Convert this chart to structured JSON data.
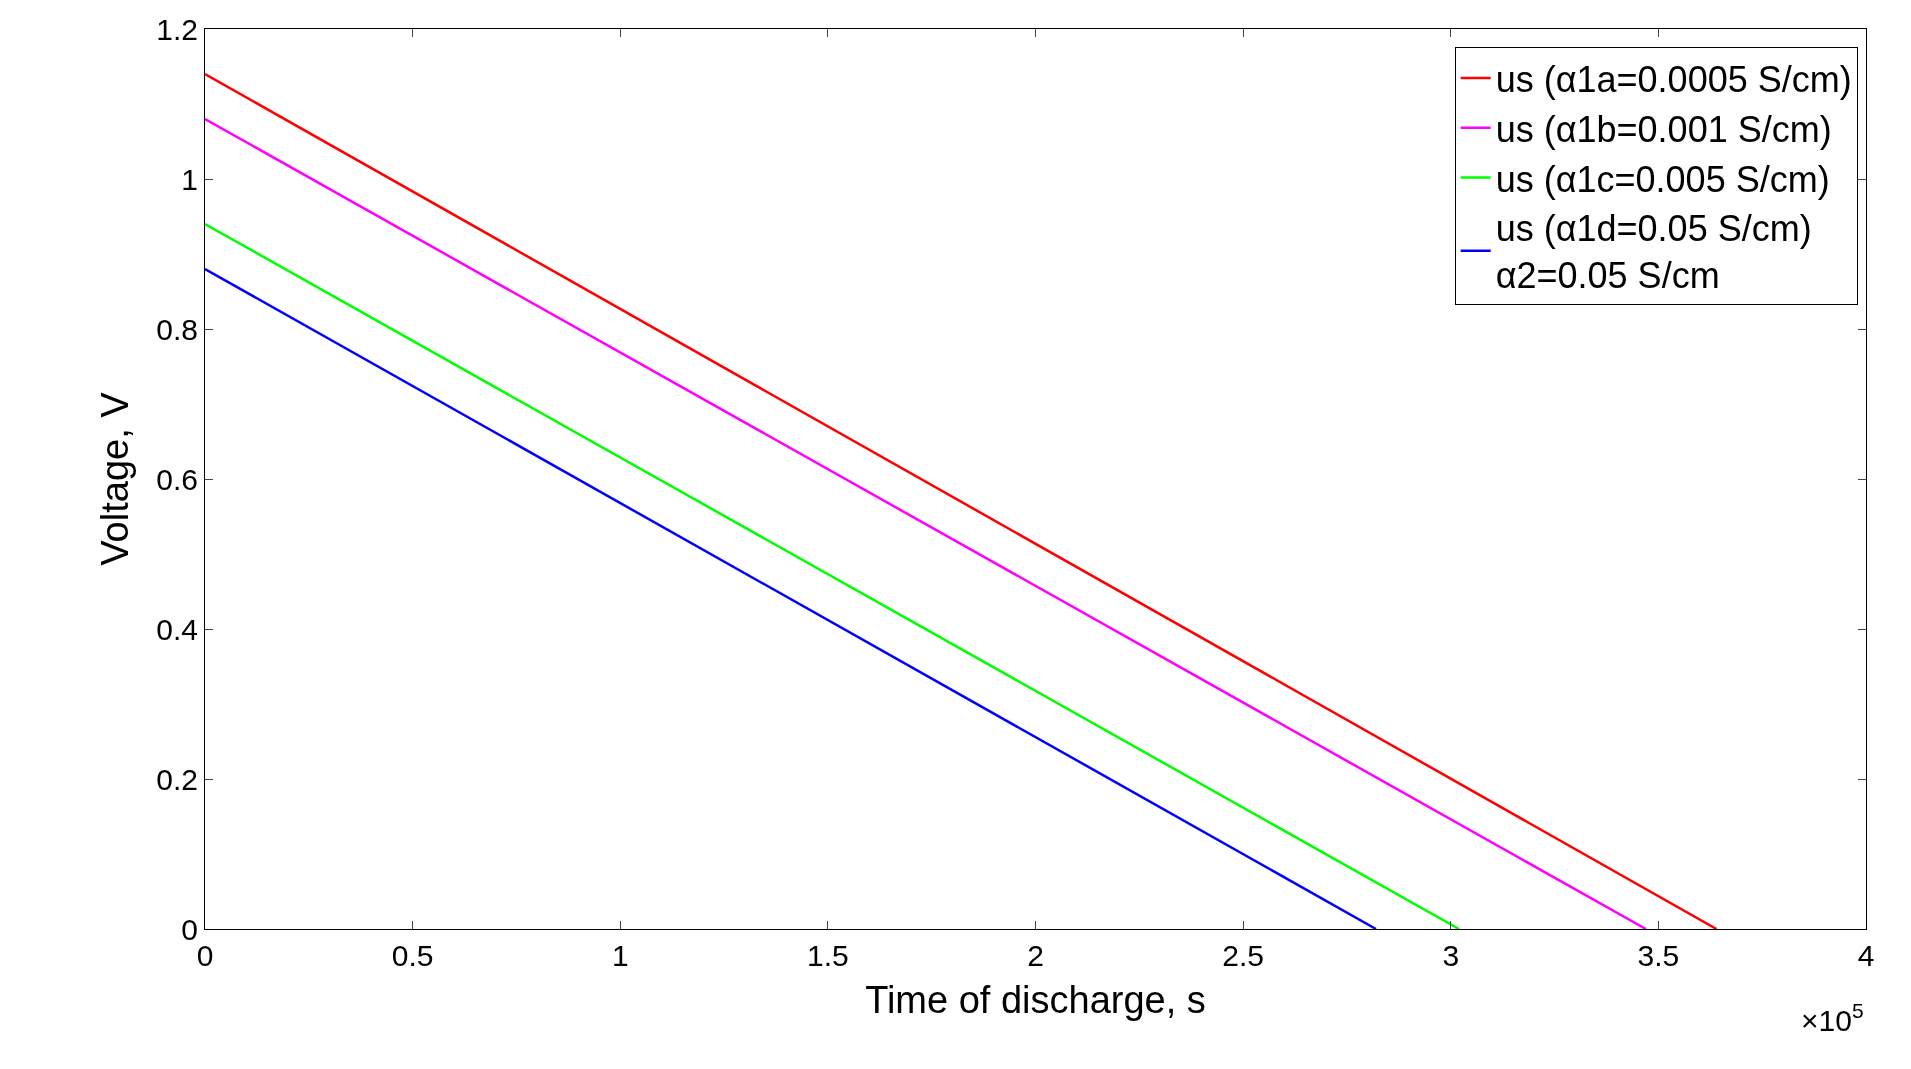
{
  "chart_data": {
    "type": "line",
    "xlabel": "Time of discharge, s",
    "ylabel": "Voltage, V",
    "series": [
      {
        "name": "us (α1a=0.0005 S/cm)",
        "color": "#ff0000",
        "x": [
          0,
          3.64
        ],
        "values": [
          1.14,
          0
        ]
      },
      {
        "name": "us (α1b=0.001 S/cm)",
        "color": "#ff00ff",
        "x": [
          0,
          3.47
        ],
        "values": [
          1.08,
          0
        ]
      },
      {
        "name": "us (α1c=0.005 S/cm)",
        "color": "#00ff00",
        "x": [
          0,
          3.02
        ],
        "values": [
          0.94,
          0
        ]
      },
      {
        "name": "us (α1d=0.05 S/cm)\nα2=0.05 S/cm",
        "color": "#0000ff",
        "x": [
          0,
          2.82
        ],
        "values": [
          0.88,
          0
        ]
      }
    ],
    "xlim": [
      0,
      4
    ],
    "ylim": [
      0,
      1.2
    ],
    "xticks": [
      0,
      0.5,
      1,
      1.5,
      2,
      2.5,
      3,
      3.5,
      4
    ],
    "yticks": [
      0,
      0.2,
      0.4,
      0.6,
      0.8,
      1,
      1.2
    ],
    "annotations": [
      "×10$^{5}$"
    ],
    "legend": "top right",
    "grid": false,
    "marker": "none",
    "line_style": "solid"
  }
}
